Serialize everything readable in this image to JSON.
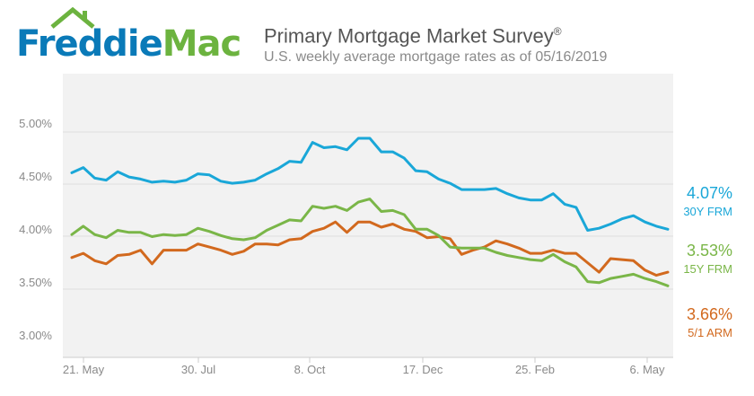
{
  "header": {
    "logo_freddie": "Freddie",
    "logo_mac": "Mac",
    "title": "Primary Mortgage Market Survey",
    "title_mark": "®",
    "subtitle": "U.S. weekly average mortgage rates as of 05/16/2019"
  },
  "colors": {
    "frm30": "#1aa7d8",
    "frm15": "#7ab648",
    "arm51": "#d2691e",
    "grid": "#dddddd",
    "plot_bg": "#f2f2f2",
    "brand_blue": "#0a7ab8",
    "brand_green": "#6cb33f"
  },
  "chart_data": {
    "type": "line",
    "title": "Primary Mortgage Market Survey",
    "subtitle": "U.S. weekly average mortgage rates as of 05/16/2019",
    "xlabel": "",
    "ylabel": "",
    "ylim": [
      3.0,
      5.0
    ],
    "yticks": [
      "5.00%",
      "4.50%",
      "4.00%",
      "3.50%",
      "3.00%"
    ],
    "xticks": [
      "21. May",
      "30. Jul",
      "8. Oct",
      "17. Dec",
      "25. Feb",
      "6. May"
    ],
    "x": [
      "2018-05-17",
      "2018-05-24",
      "2018-05-31",
      "2018-06-07",
      "2018-06-14",
      "2018-06-21",
      "2018-06-28",
      "2018-07-05",
      "2018-07-12",
      "2018-07-19",
      "2018-07-26",
      "2018-08-02",
      "2018-08-09",
      "2018-08-16",
      "2018-08-23",
      "2018-08-30",
      "2018-09-06",
      "2018-09-13",
      "2018-09-20",
      "2018-09-27",
      "2018-10-04",
      "2018-10-11",
      "2018-10-18",
      "2018-10-25",
      "2018-11-01",
      "2018-11-08",
      "2018-11-15",
      "2018-11-21",
      "2018-11-29",
      "2018-12-06",
      "2018-12-13",
      "2018-12-20",
      "2018-12-27",
      "2019-01-03",
      "2019-01-10",
      "2019-01-17",
      "2019-01-24",
      "2019-01-31",
      "2019-02-07",
      "2019-02-14",
      "2019-02-21",
      "2019-02-28",
      "2019-03-07",
      "2019-03-14",
      "2019-03-21",
      "2019-03-28",
      "2019-04-04",
      "2019-04-11",
      "2019-04-18",
      "2019-04-25",
      "2019-05-02",
      "2019-05-09",
      "2019-05-16"
    ],
    "grid": true,
    "legend": "right-end-labels",
    "series": [
      {
        "name": "30Y FRM",
        "end_label": "4.07%",
        "color_key": "frm30",
        "values": [
          4.61,
          4.66,
          4.56,
          4.54,
          4.62,
          4.57,
          4.55,
          4.52,
          4.53,
          4.52,
          4.54,
          4.6,
          4.59,
          4.53,
          4.51,
          4.52,
          4.54,
          4.6,
          4.65,
          4.72,
          4.71,
          4.9,
          4.85,
          4.86,
          4.83,
          4.94,
          4.94,
          4.81,
          4.81,
          4.75,
          4.63,
          4.62,
          4.55,
          4.51,
          4.45,
          4.45,
          4.45,
          4.46,
          4.41,
          4.37,
          4.35,
          4.35,
          4.41,
          4.31,
          4.28,
          4.06,
          4.08,
          4.12,
          4.17,
          4.2,
          4.14,
          4.1,
          4.07
        ]
      },
      {
        "name": "15Y FRM",
        "end_label": "3.53%",
        "color_key": "frm15",
        "values": [
          4.02,
          4.1,
          4.02,
          3.99,
          4.06,
          4.04,
          4.04,
          4.0,
          4.02,
          4.01,
          4.02,
          4.08,
          4.05,
          4.01,
          3.98,
          3.97,
          3.99,
          4.06,
          4.11,
          4.16,
          4.15,
          4.29,
          4.27,
          4.29,
          4.25,
          4.33,
          4.36,
          4.24,
          4.25,
          4.21,
          4.07,
          4.07,
          4.01,
          3.9,
          3.89,
          3.89,
          3.89,
          3.85,
          3.82,
          3.8,
          3.78,
          3.77,
          3.83,
          3.76,
          3.71,
          3.57,
          3.56,
          3.6,
          3.62,
          3.64,
          3.6,
          3.57,
          3.53
        ]
      },
      {
        "name": "5/1 ARM",
        "end_label": "3.66%",
        "color_key": "arm51",
        "values": [
          3.8,
          3.84,
          3.77,
          3.74,
          3.82,
          3.83,
          3.87,
          3.74,
          3.87,
          3.87,
          3.87,
          3.93,
          3.9,
          3.87,
          3.83,
          3.86,
          3.93,
          3.93,
          3.92,
          3.97,
          3.98,
          4.05,
          4.08,
          4.14,
          4.04,
          4.14,
          4.14,
          4.09,
          4.12,
          4.07,
          4.05,
          3.99,
          4.0,
          3.98,
          3.83,
          3.87,
          3.9,
          3.96,
          3.93,
          3.89,
          3.84,
          3.84,
          3.87,
          3.84,
          3.84,
          3.75,
          3.66,
          3.79,
          3.78,
          3.77,
          3.68,
          3.63,
          3.66
        ]
      }
    ]
  }
}
